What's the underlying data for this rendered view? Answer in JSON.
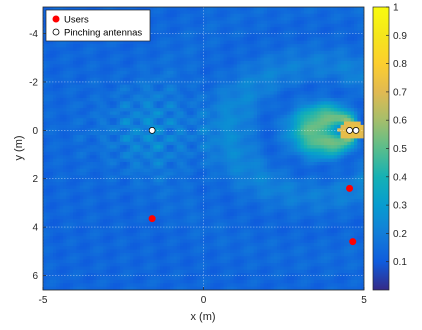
{
  "chart_data": {
    "type": "heatmap",
    "title": "",
    "xlabel": "x (m)",
    "ylabel": "y (m)",
    "xlim": [
      -5,
      5
    ],
    "ylim": [
      -5.1,
      6.6
    ],
    "y_direction": "reversed",
    "x_ticks": [
      "-5",
      "0",
      "5"
    ],
    "y_ticks": [
      "-4",
      "-2",
      "0",
      "2",
      "4",
      "6"
    ],
    "grid": true,
    "legend_placement": "top-left",
    "colorbar": {
      "min": 0,
      "max": 1,
      "ticks": [
        "0.1",
        "0.2",
        "0.3",
        "0.4",
        "0.5",
        "0.6",
        "0.7",
        "0.8",
        "0.9",
        "1"
      ],
      "colormap": "parula"
    },
    "heatmap_pattern": {
      "sources": [
        {
          "x": 4.55,
          "y": 0,
          "peak": 0.72
        },
        {
          "x": 4.75,
          "y": 0,
          "peak": 0.72
        },
        {
          "x": -1.6,
          "y": 0,
          "peak": 0.35
        }
      ],
      "background_level": 0.13
    },
    "series": [
      {
        "name": "Users",
        "marker": "filled-circle",
        "color": "#ff0000",
        "points": [
          [
            -1.6,
            3.65
          ],
          [
            4.55,
            2.4
          ],
          [
            4.65,
            4.6
          ]
        ]
      },
      {
        "name": "Pinching antennas",
        "marker": "open-circle",
        "color": "#ffffff",
        "points": [
          [
            -1.6,
            0.0
          ],
          [
            4.55,
            0.0
          ],
          [
            4.75,
            0.0
          ]
        ]
      }
    ]
  }
}
